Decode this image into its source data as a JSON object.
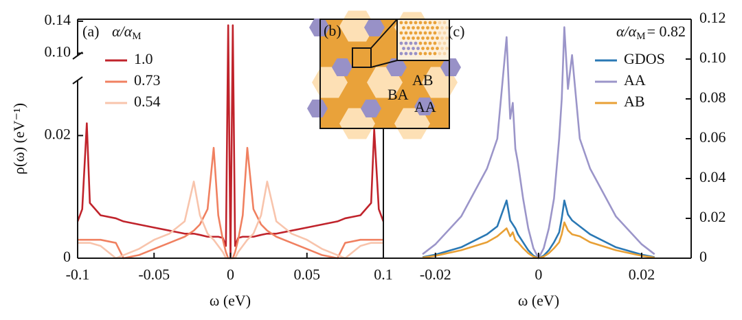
{
  "chart_data": [
    {
      "type": "line",
      "panel_label": "(a)",
      "legend_title": {
        "symbol": "α/α",
        "subscript": "M"
      },
      "x_label": "ω (eV)",
      "y_label": "ρ(ω) (eV⁻¹)",
      "x": [
        -0.1,
        -0.097,
        -0.094,
        -0.092,
        -0.085,
        -0.075,
        -0.07,
        -0.06,
        -0.05,
        -0.04,
        -0.03,
        -0.024,
        -0.02,
        -0.015,
        -0.011,
        -0.008,
        -0.005,
        -0.003,
        -0.0015,
        0,
        0.0015,
        0.003,
        0.005,
        0.008,
        0.011,
        0.015,
        0.02,
        0.024,
        0.03,
        0.04,
        0.05,
        0.06,
        0.07,
        0.075,
        0.085,
        0.092,
        0.094,
        0.097,
        0.1
      ],
      "series": [
        {
          "name": "1.0",
          "color": "#c0232b",
          "values": [
            0.006,
            0.008,
            0.022,
            0.009,
            0.007,
            0.0065,
            0.006,
            0.0055,
            0.005,
            0.0045,
            0.004,
            0.004,
            0.0038,
            0.0035,
            0.0035,
            0.0035,
            0.0033,
            0.002,
            0.135,
            0,
            0.135,
            0.002,
            0.0033,
            0.0035,
            0.0035,
            0.0035,
            0.0038,
            0.004,
            0.004,
            0.0045,
            0.005,
            0.0055,
            0.006,
            0.0065,
            0.007,
            0.009,
            0.021,
            0.008,
            0.006
          ]
        },
        {
          "name": "0.73",
          "color": "#f08060",
          "values": [
            0.003,
            0.003,
            0.003,
            0.003,
            0.003,
            0.0025,
            0,
            0.0005,
            0.0015,
            0.0025,
            0.0035,
            0.0045,
            0.0055,
            0.008,
            0.018,
            0.007,
            0.003,
            0.001,
            0,
            0,
            0,
            0.001,
            0.003,
            0.007,
            0.018,
            0.008,
            0.0055,
            0.0045,
            0.0035,
            0.0025,
            0.0015,
            0.0005,
            0,
            0.0025,
            0.003,
            0.003,
            0.003,
            0.003,
            0.003
          ]
        },
        {
          "name": "0.54",
          "color": "#f8c4ac",
          "values": [
            0.0025,
            0.0025,
            0.0025,
            0.0025,
            0.002,
            0,
            0.0005,
            0.0015,
            0.003,
            0.004,
            0.006,
            0.0125,
            0.007,
            0.004,
            0.003,
            0.002,
            0.001,
            0,
            0,
            0,
            0,
            0,
            0.001,
            0.002,
            0.003,
            0.004,
            0.007,
            0.0125,
            0.006,
            0.004,
            0.003,
            0.0015,
            0.0005,
            0,
            0.002,
            0.0025,
            0.0025,
            0.0025,
            0.0025
          ]
        }
      ],
      "xlim": [
        -0.1,
        0.1
      ],
      "xticks": [
        -0.1,
        -0.05,
        0,
        0.05,
        0.1
      ],
      "ylim": [
        0,
        0.1425
      ],
      "ybreak": [
        0.029,
        0.097
      ],
      "yticks": [
        0,
        0.02,
        {
          "value": 0.1,
          "label": "0.10"
        },
        0.14
      ],
      "legend": "upper left"
    },
    {
      "type": "line",
      "panel_label": "(c)",
      "annotation": {
        "symbol": "α/α",
        "subscript": "M",
        "value_text": "= 0.82"
      },
      "x_label": "ω (eV)",
      "x": [
        -0.0225,
        -0.02,
        -0.015,
        -0.01,
        -0.008,
        -0.0062,
        -0.0055,
        -0.005,
        -0.0045,
        -0.004,
        -0.003,
        -0.002,
        -0.001,
        0,
        0.001,
        0.002,
        0.003,
        0.004,
        0.0045,
        0.005,
        0.0057,
        0.0065,
        0.008,
        0.01,
        0.015,
        0.02,
        0.0225
      ],
      "series": [
        {
          "name": "GDOS",
          "color": "#2a78b4",
          "values": [
            0.0005,
            0.0018,
            0.0055,
            0.012,
            0.016,
            0.029,
            0.019,
            0.017,
            0.015,
            0.012,
            0.008,
            0.004,
            0.0013,
            0,
            0.0013,
            0.004,
            0.008,
            0.013,
            0.02,
            0.029,
            0.022,
            0.019,
            0.016,
            0.012,
            0.0055,
            0.0018,
            0.0005
          ]
        },
        {
          "name": "AA",
          "color": "#9b95c9",
          "values": [
            0.002,
            0.007,
            0.021,
            0.045,
            0.06,
            0.111,
            0.07,
            0.078,
            0.055,
            0.048,
            0.03,
            0.015,
            0.005,
            0,
            0.005,
            0.015,
            0.03,
            0.06,
            0.08,
            0.116,
            0.085,
            0.102,
            0.06,
            0.045,
            0.021,
            0.007,
            0.002
          ]
        },
        {
          "name": "AB",
          "color": "#e8a035",
          "values": [
            0.0003,
            0.0012,
            0.004,
            0.008,
            0.011,
            0.015,
            0.011,
            0.013,
            0.009,
            0.008,
            0.005,
            0.0025,
            0.0008,
            0,
            0.0008,
            0.0025,
            0.005,
            0.008,
            0.012,
            0.018,
            0.014,
            0.012,
            0.011,
            0.008,
            0.004,
            0.0012,
            0.0003
          ]
        }
      ],
      "xlim": [
        -0.0301,
        0.0296
      ],
      "xticks": [
        -0.02,
        0,
        0.02
      ],
      "ylim": [
        0,
        0.12
      ],
      "yticks": [
        0,
        0.02,
        0.04,
        0.06,
        0.08,
        {
          "value": 0.1,
          "label": "0.10"
        },
        0.12
      ],
      "y_axis_side": "right",
      "legend": "upper right"
    }
  ],
  "inset": {
    "label": "(b)",
    "regions": [
      "AB",
      "BA",
      "AA"
    ]
  }
}
